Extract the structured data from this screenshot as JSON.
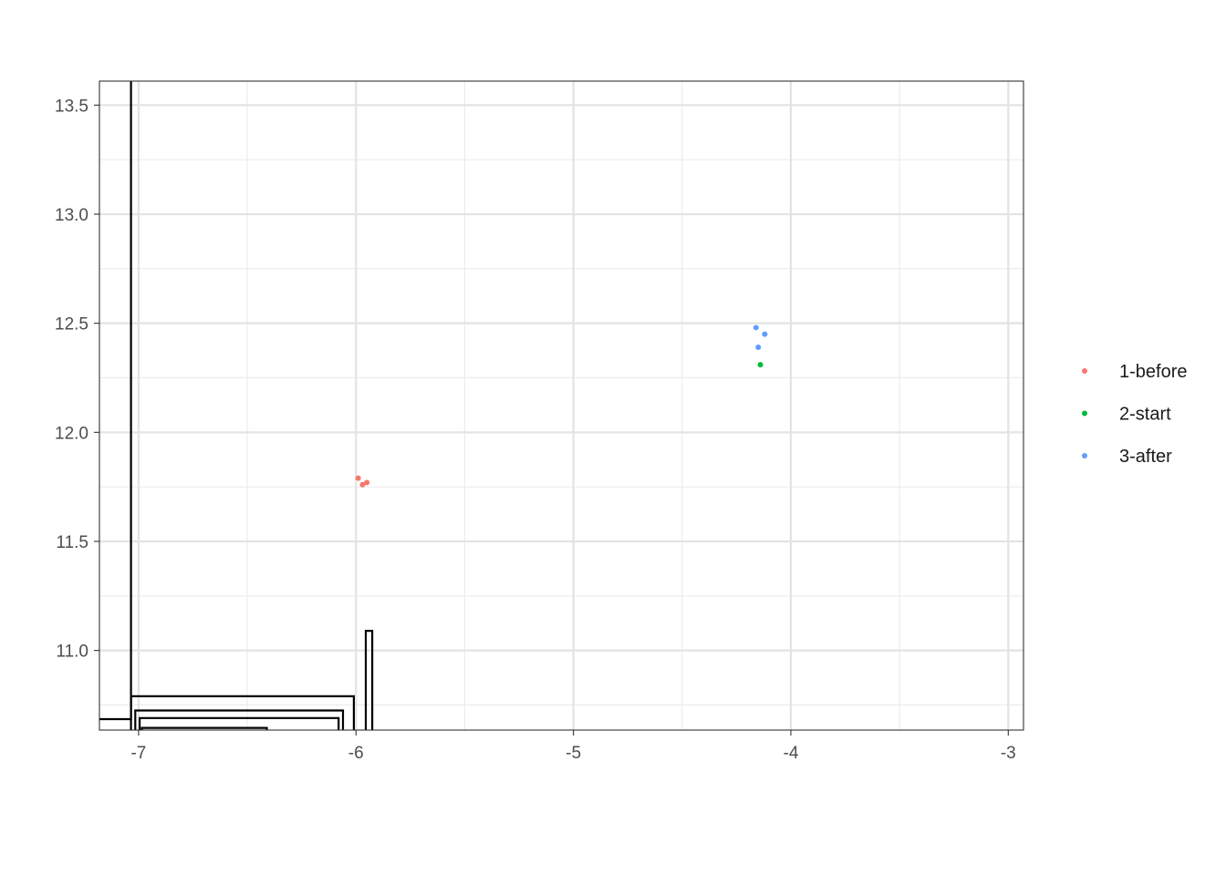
{
  "chart_data": {
    "type": "scatter",
    "title": "",
    "xlabel": "",
    "ylabel": "",
    "xlim": [
      -7.18,
      -2.93
    ],
    "ylim": [
      10.635,
      13.61
    ],
    "x_ticks": [
      -7,
      -6,
      -5,
      -4,
      -3
    ],
    "x_tick_labels": [
      "-7",
      "-6",
      "-5",
      "-4",
      "-3"
    ],
    "y_ticks": [
      11.0,
      11.5,
      12.0,
      12.5,
      13.0,
      13.5
    ],
    "y_tick_labels": [
      "11.0",
      "11.5",
      "12.0",
      "12.5",
      "13.0",
      "13.5"
    ],
    "grid": true,
    "legend_position": "right",
    "series": [
      {
        "name": "1-before",
        "color": "#F8766D",
        "points": [
          [
            -5.99,
            11.79
          ],
          [
            -5.97,
            11.76
          ],
          [
            -5.95,
            11.77
          ]
        ]
      },
      {
        "name": "2-start",
        "color": "#00BA38",
        "points": [
          [
            -4.14,
            12.31
          ]
        ]
      },
      {
        "name": "3-after",
        "color": "#619CFF",
        "points": [
          [
            -4.16,
            12.48
          ],
          [
            -4.12,
            12.45
          ],
          [
            -4.15,
            12.39
          ]
        ]
      }
    ],
    "outline_paths": [
      [
        [
          -7.18,
          10.685
        ],
        [
          -7.035,
          10.685
        ],
        [
          -7.035,
          13.61
        ]
      ],
      [
        [
          -7.035,
          10.635
        ],
        [
          -7.035,
          10.79
        ],
        [
          -6.01,
          10.79
        ],
        [
          -6.01,
          10.635
        ]
      ],
      [
        [
          -7.015,
          10.635
        ],
        [
          -7.015,
          10.725
        ],
        [
          -6.06,
          10.725
        ],
        [
          -6.06,
          10.635
        ]
      ],
      [
        [
          -6.995,
          10.635
        ],
        [
          -6.995,
          10.69
        ],
        [
          -6.08,
          10.69
        ],
        [
          -6.08,
          10.635
        ]
      ],
      [
        [
          -6.985,
          10.635
        ],
        [
          -6.985,
          10.645
        ],
        [
          -6.41,
          10.645
        ],
        [
          -6.41,
          10.635
        ]
      ],
      [
        [
          -5.955,
          10.635
        ],
        [
          -5.955,
          11.09
        ],
        [
          -5.925,
          11.09
        ],
        [
          -5.925,
          10.635
        ]
      ]
    ]
  }
}
